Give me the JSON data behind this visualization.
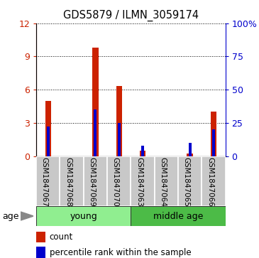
{
  "title": "GDS5879 / ILMN_3059174",
  "samples": [
    "GSM1847067",
    "GSM1847068",
    "GSM1847069",
    "GSM1847070",
    "GSM1847063",
    "GSM1847064",
    "GSM1847065",
    "GSM1847066"
  ],
  "count_values": [
    5.0,
    0.0,
    9.8,
    6.3,
    0.5,
    0.0,
    0.2,
    4.0
  ],
  "percentile_values": [
    22,
    0,
    35,
    25,
    8,
    0,
    10,
    20
  ],
  "groups": [
    {
      "label": "young",
      "start": 0,
      "end": 4,
      "color": "#90EE90"
    },
    {
      "label": "middle age",
      "start": 4,
      "end": 8,
      "color": "#4CBB47"
    }
  ],
  "ylim_left": [
    0,
    12
  ],
  "ylim_right": [
    0,
    100
  ],
  "yticks_left": [
    0,
    3,
    6,
    9,
    12
  ],
  "ytick_labels_left": [
    "0",
    "3",
    "6",
    "9",
    "12"
  ],
  "yticks_right": [
    0,
    25,
    50,
    75,
    100
  ],
  "ytick_labels_right": [
    "0",
    "25",
    "50",
    "75",
    "100%"
  ],
  "bar_color_red": "#CC2200",
  "bar_color_blue": "#0000CC",
  "background_color": "#ffffff",
  "age_label": "age",
  "legend_count": "count",
  "legend_percentile": "percentile rank within the sample",
  "gray_bg": "#C8C8C8"
}
